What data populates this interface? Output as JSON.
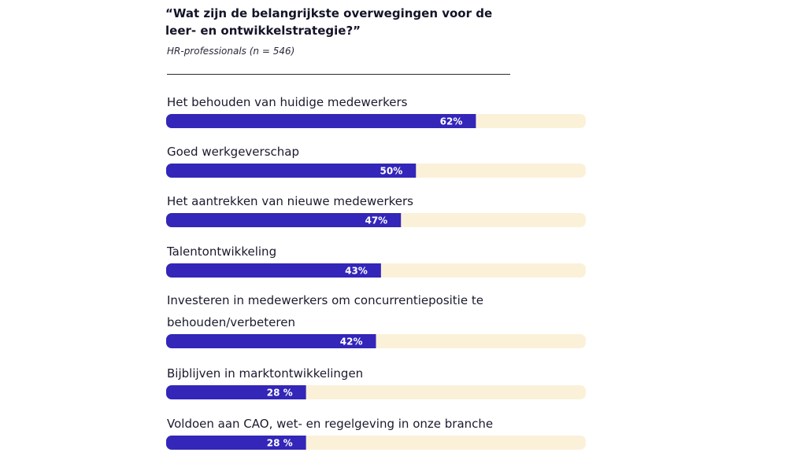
{
  "header": {
    "title_line1": "“Wat zijn de belangrijkste overwegingen voor de",
    "title_line2": " leer- en ontwikkelstrategie?”",
    "subtitle": "HR-professionals (n = 546)"
  },
  "colors": {
    "bar_fill": "#3326b8",
    "track": "#fbf1d9",
    "text": "#1a1a2e"
  },
  "chart_data": {
    "type": "bar",
    "orientation": "horizontal",
    "title": "“Wat zijn de belangrijkste overwegingen voor de leer- en ontwikkelstrategie?”",
    "subtitle": "HR-professionals (n = 546)",
    "xlim": [
      0,
      100
    ],
    "unit": "%",
    "grid": false,
    "categories": [
      [
        "Het behouden van huidige medewerkers"
      ],
      [
        "Goed werkgeverschap"
      ],
      [
        "Het aantrekken van nieuwe medewerkers"
      ],
      [
        "Talentontwikkeling"
      ],
      [
        "Investeren in medewerkers om concurrentiepositie te",
        "behouden/verbeteren"
      ],
      [
        "Bijblijven in marktontwikkelingen"
      ],
      [
        "Voldoen aan CAO, wet- en regelgeving in onze branche"
      ]
    ],
    "values": [
      62,
      50,
      47,
      43,
      42,
      28,
      28
    ],
    "value_labels": [
      "62%",
      "50%",
      "47%",
      "43%",
      "42%",
      "28 %",
      "28 %"
    ]
  }
}
